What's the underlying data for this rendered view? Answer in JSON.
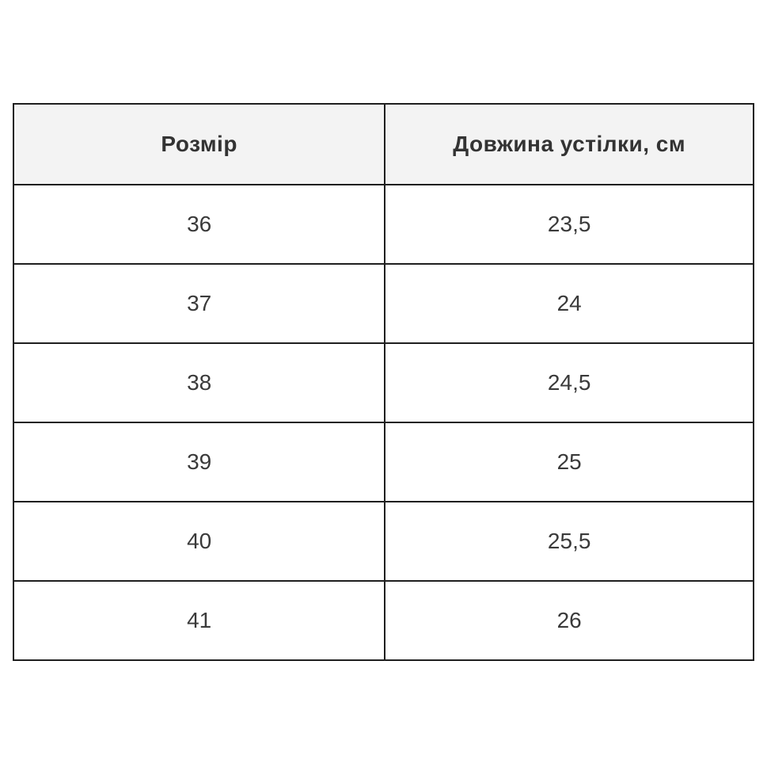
{
  "table": {
    "headers": [
      "Розмір",
      "Довжина устілки, см"
    ],
    "rows": [
      {
        "size": "36",
        "length": "23,5"
      },
      {
        "size": "37",
        "length": "24"
      },
      {
        "size": "38",
        "length": "24,5"
      },
      {
        "size": "39",
        "length": "25"
      },
      {
        "size": "40",
        "length": "25,5"
      },
      {
        "size": "41",
        "length": "26"
      }
    ]
  },
  "colors": {
    "header_background": "#f3f3f3",
    "border": "#1f1f1f",
    "header_text": "#333333",
    "cell_text": "#3a3a3a",
    "page_background": "#ffffff"
  }
}
